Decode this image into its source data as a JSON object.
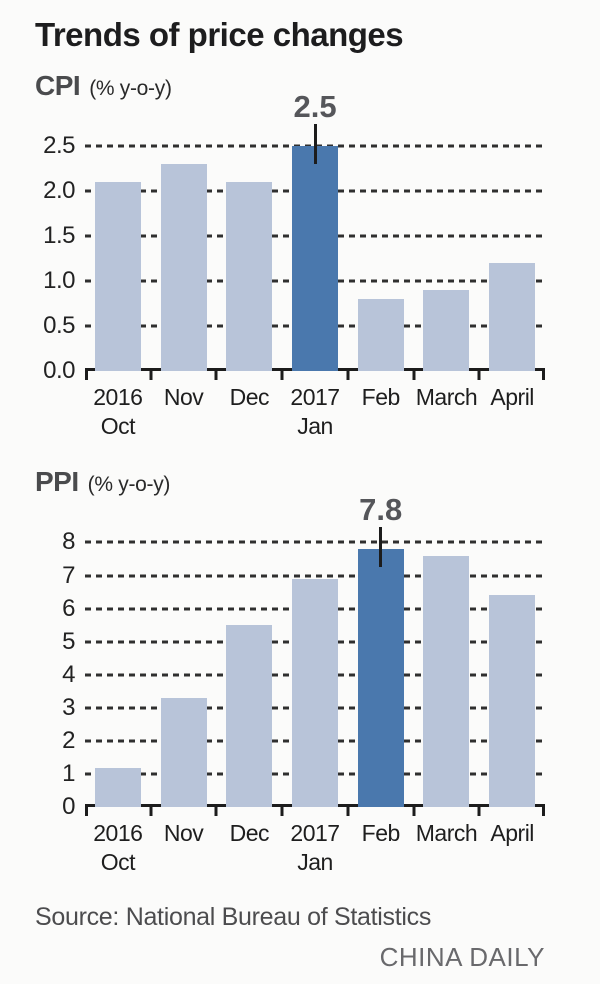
{
  "title": "Trends of price changes",
  "source": "Source: National Bureau of Statistics",
  "credit": "CHINA DAILY",
  "colors": {
    "bar_light": "#b8c4d9",
    "bar_highlight": "#4a78ad",
    "grid": "#2f2f2f",
    "axis": "#1c1c1c"
  },
  "chart_data": [
    {
      "type": "bar",
      "title": "CPI",
      "ylabel": "(% y-o-y)",
      "categories": [
        [
          "2016",
          "Oct"
        ],
        [
          "Nov"
        ],
        [
          "Dec"
        ],
        [
          "2017",
          "Jan"
        ],
        [
          "Feb"
        ],
        [
          "March"
        ],
        [
          "April"
        ]
      ],
      "values": [
        2.1,
        2.3,
        2.1,
        2.5,
        0.8,
        0.9,
        1.2
      ],
      "highlight_index": 3,
      "highlight_label": "2.5",
      "ylim": [
        0,
        2.5
      ],
      "yticks": [
        2.5,
        2.0,
        1.5,
        1.0,
        0.5,
        0.0
      ],
      "ytick_labels": [
        "2.5",
        "2.0",
        "1.5",
        "1.0",
        "0.5",
        "0.0"
      ],
      "grid": "dashed",
      "legend": "none"
    },
    {
      "type": "bar",
      "title": "PPI",
      "ylabel": "(% y-o-y)",
      "categories": [
        [
          "2016",
          "Oct"
        ],
        [
          "Nov"
        ],
        [
          "Dec"
        ],
        [
          "2017",
          "Jan"
        ],
        [
          "Feb"
        ],
        [
          "March"
        ],
        [
          "April"
        ]
      ],
      "values": [
        1.2,
        3.3,
        5.5,
        6.9,
        7.8,
        7.6,
        6.4
      ],
      "highlight_index": 4,
      "highlight_label": "7.8",
      "ylim": [
        0,
        8
      ],
      "yticks": [
        8,
        7,
        6,
        5,
        4,
        3,
        2,
        1,
        0
      ],
      "ytick_labels": [
        "8",
        "7",
        "6",
        "5",
        "4",
        "3",
        "2",
        "1",
        "0"
      ],
      "grid": "dashed",
      "legend": "none"
    }
  ]
}
